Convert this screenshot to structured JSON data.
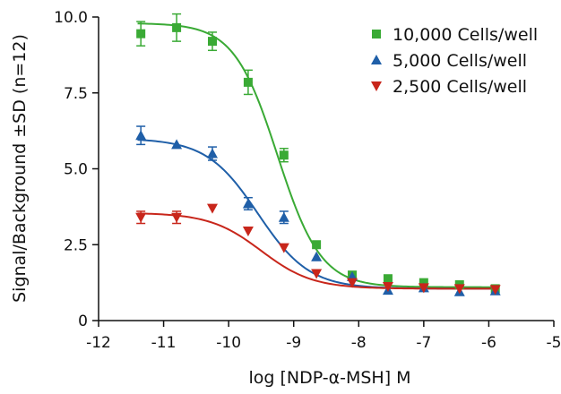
{
  "chart_data": {
    "type": "scatter",
    "xlabel": "log [NDP-α-MSH] M",
    "ylabel": "Signal/Background ±SD (n=12)",
    "xlim": [
      -12,
      -5
    ],
    "ylim": [
      0,
      10
    ],
    "xticks": [
      -12,
      -11,
      -10,
      -9,
      -8,
      -7,
      -6,
      -5
    ],
    "yticks": [
      0,
      2.5,
      5.0,
      7.5,
      10.0
    ],
    "ytick_labels": [
      "0",
      "2.5",
      "5.0",
      "7.5",
      "10.0"
    ],
    "legend_position": "top-right",
    "x": [
      -11.35,
      -10.8,
      -10.25,
      -9.7,
      -9.15,
      -8.65,
      -8.1,
      -7.55,
      -7.0,
      -6.45,
      -5.9
    ],
    "series": [
      {
        "name": "10,000 Cells/well",
        "color": "#3aaa35",
        "marker": "square",
        "y": [
          9.45,
          9.65,
          9.2,
          7.85,
          5.45,
          2.5,
          1.5,
          1.38,
          1.25,
          1.18,
          1.05
        ],
        "err": [
          0.4,
          0.45,
          0.3,
          0.4,
          0.22,
          0.05,
          0.05,
          0.05,
          0.05,
          0.05,
          0.05
        ],
        "fit": {
          "bottom": 1.1,
          "top": 9.8,
          "logEC50": -9.25,
          "hill": 1.3
        }
      },
      {
        "name": "5,000 Cells/well",
        "color": "#1f5fa8",
        "marker": "triangle-up",
        "y": [
          6.1,
          5.8,
          5.5,
          3.85,
          3.4,
          2.1,
          1.45,
          1.0,
          1.08,
          0.95,
          0.98
        ],
        "err": [
          0.3,
          0.05,
          0.22,
          0.2,
          0.2,
          0.05,
          0.05,
          0.05,
          0.05,
          0.05,
          0.05
        ],
        "fit": {
          "bottom": 1.05,
          "top": 6.0,
          "logEC50": -9.55,
          "hill": 1.1
        }
      },
      {
        "name": "2,500 Cells/well",
        "color": "#c8261b",
        "marker": "triangle-down",
        "y": [
          3.4,
          3.4,
          3.7,
          2.95,
          2.4,
          1.55,
          1.25,
          1.12,
          1.08,
          1.05,
          1.02
        ],
        "err": [
          0.2,
          0.2,
          0.05,
          0.05,
          0.05,
          0.05,
          0.05,
          0.05,
          0.05,
          0.05,
          0.05
        ],
        "fit": {
          "bottom": 1.05,
          "top": 3.55,
          "logEC50": -9.5,
          "hill": 1.1
        }
      }
    ]
  }
}
